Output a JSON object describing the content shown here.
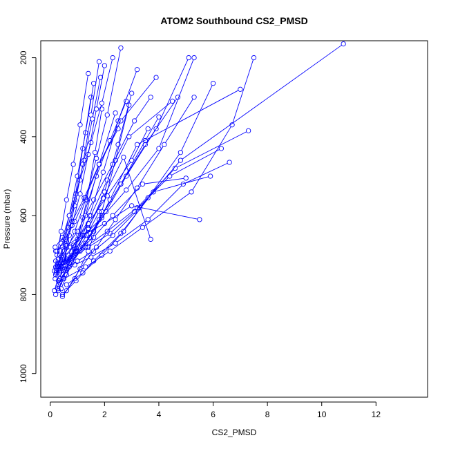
{
  "chart_data": {
    "type": "scatter",
    "title": "ATOM2 Southbound CS2_PMSD",
    "xlabel": "CS2_PMSD",
    "ylabel": "Pressure (mbar)",
    "xlim": [
      -0.35,
      13.9
    ],
    "ylim": [
      1060,
      157
    ],
    "y_axis_reversed": true,
    "x_ticks": [
      0,
      2,
      4,
      6,
      8,
      10,
      12
    ],
    "y_ticks": [
      200,
      400,
      600,
      800,
      1000
    ],
    "grid": false,
    "legend": "none",
    "marker": "open-circle",
    "connect_points": true,
    "colors": {
      "series": "#0000ff",
      "axis": "#000000",
      "background": "#ffffff"
    },
    "series": [
      {
        "x": [
          0.2,
          0.35,
          0.5,
          0.7,
          0.9,
          1.2,
          1.5
        ],
        "y": [
          800,
          760,
          720,
          650,
          560,
          430,
          300
        ]
      },
      {
        "x": [
          0.3,
          0.6,
          0.9,
          1.3,
          1.8,
          2.4
        ],
        "y": [
          790,
          735,
          690,
          600,
          470,
          340
        ]
      },
      {
        "x": [
          0.15,
          0.25,
          0.4,
          0.6,
          0.85,
          1.1,
          1.4
        ],
        "y": [
          740,
          700,
          640,
          560,
          470,
          370,
          240
        ]
      },
      {
        "x": [
          0.2,
          0.5,
          1.0,
          1.6,
          2.3,
          3.1,
          3.7
        ],
        "y": [
          730,
          690,
          640,
          560,
          470,
          360,
          300
        ]
      },
      {
        "x": [
          0.4,
          0.8,
          1.3,
          1.9,
          2.6,
          3.5,
          4.7
        ],
        "y": [
          785,
          720,
          670,
          600,
          520,
          420,
          300
        ]
      },
      {
        "x": [
          0.25,
          0.45,
          0.7,
          1.0,
          1.3,
          1.6
        ],
        "y": [
          735,
          680,
          600,
          500,
          390,
          265
        ]
      },
      {
        "x": [
          0.3,
          0.55,
          0.9,
          1.2,
          1.7,
          2.2,
          2.8
        ],
        "y": [
          775,
          740,
          685,
          605,
          500,
          410,
          310
        ]
      },
      {
        "x": [
          0.18,
          0.4,
          0.65,
          0.95,
          1.25,
          1.55,
          1.85
        ],
        "y": [
          760,
          705,
          630,
          545,
          460,
          355,
          250
        ]
      },
      {
        "x": [
          0.6,
          1.1,
          1.7,
          2.4,
          3.2,
          4.2,
          5.3
        ],
        "y": [
          790,
          735,
          680,
          610,
          530,
          420,
          300
        ]
      },
      {
        "x": [
          0.22,
          0.5,
          0.85,
          1.4,
          2.1,
          3.0,
          3.6
        ],
        "y": [
          745,
          710,
          675,
          620,
          550,
          460,
          380
        ]
      },
      {
        "x": [
          0.35,
          0.7,
          1.05,
          1.35,
          1.65,
          1.9
        ],
        "y": [
          770,
          720,
          650,
          560,
          440,
          330
        ]
      },
      {
        "x": [
          0.28,
          0.6,
          1.0,
          1.6,
          2.3,
          3.4,
          5.0
        ],
        "y": [
          728,
          710,
          690,
          655,
          600,
          520,
          505
        ]
      },
      {
        "x": [
          0.4,
          0.9,
          1.5,
          2.4,
          3.6,
          4.9,
          6.6
        ],
        "y": [
          740,
          725,
          705,
          670,
          610,
          520,
          465
        ]
      },
      {
        "x": [
          0.3,
          0.75,
          1.3,
          2.1,
          3.2,
          4.6,
          7.3
        ],
        "y": [
          720,
          705,
          680,
          640,
          580,
          480,
          385
        ]
      },
      {
        "x": [
          0.2,
          0.6,
          1.2,
          2.0,
          3.0,
          5.5
        ],
        "y": [
          690,
          675,
          650,
          620,
          575,
          610
        ]
      },
      {
        "x": [
          0.5,
          1.3,
          2.2,
          3.4,
          5.2,
          6.7,
          7.5
        ],
        "y": [
          760,
          730,
          690,
          630,
          540,
          370,
          200
        ]
      },
      {
        "x": [
          0.25,
          0.55,
          0.9,
          1.3,
          1.8,
          2.6,
          3.9
        ],
        "y": [
          690,
          660,
          615,
          555,
          470,
          360,
          250
        ]
      },
      {
        "x": [
          0.35,
          0.8,
          1.4,
          2.0,
          2.5,
          3.0
        ],
        "y": [
          735,
          700,
          635,
          540,
          420,
          290
        ]
      },
      {
        "x": [
          0.15,
          0.35,
          0.6,
          0.9,
          1.2,
          1.5,
          1.8
        ],
        "y": [
          790,
          745,
          665,
          575,
          470,
          345,
          210
        ]
      },
      {
        "x": [
          0.45,
          0.95,
          1.6,
          2.6,
          3.8,
          5.9
        ],
        "y": [
          800,
          765,
          715,
          645,
          540,
          500
        ]
      },
      {
        "x": [
          0.3,
          0.65,
          1.0,
          1.5,
          2.1,
          2.9,
          4.5
        ],
        "y": [
          730,
          700,
          660,
          600,
          510,
          400,
          310
        ]
      },
      {
        "x": [
          0.2,
          0.4,
          0.7,
          1.1,
          1.5,
          1.9,
          2.3
        ],
        "y": [
          715,
          670,
          600,
          510,
          415,
          315,
          200
        ]
      },
      {
        "x": [
          0.6,
          1.2,
          1.9,
          2.7,
          3.6,
          4.8,
          6.0
        ],
        "y": [
          775,
          745,
          700,
          640,
          555,
          440,
          265
        ]
      },
      {
        "x": [
          0.35,
          0.7,
          1.1,
          1.6,
          2.2,
          3.2,
          7.0
        ],
        "y": [
          740,
          720,
          690,
          640,
          560,
          420,
          280
        ]
      },
      {
        "x": [
          0.25,
          0.5,
          0.8,
          1.1,
          1.4,
          1.7,
          2.0
        ],
        "y": [
          730,
          690,
          625,
          545,
          445,
          330,
          220
        ]
      },
      {
        "x": [
          0.4,
          0.85,
          1.4,
          2.2,
          3.1,
          4.4,
          6.3
        ],
        "y": [
          720,
          705,
          680,
          645,
          590,
          500,
          430
        ]
      },
      {
        "x": [
          0.18,
          0.45,
          0.8,
          1.25,
          1.8,
          2.5
        ],
        "y": [
          680,
          655,
          615,
          555,
          470,
          380
        ]
      },
      {
        "x": [
          0.3,
          0.7,
          1.2,
          1.8,
          2.6,
          3.5,
          4.0
        ],
        "y": [
          765,
          730,
          680,
          610,
          520,
          410,
          350
        ]
      },
      {
        "x": [
          0.5,
          1.0,
          1.6,
          2.3,
          3.3,
          4.8,
          10.8
        ],
        "y": [
          735,
          715,
          690,
          650,
          580,
          460,
          165
        ]
      },
      {
        "x": [
          0.2,
          0.5,
          0.9,
          1.3,
          1.7,
          2.1,
          2.6
        ],
        "y": [
          750,
          705,
          640,
          560,
          455,
          345,
          175
        ]
      },
      {
        "x": [
          0.35,
          0.75,
          1.25,
          1.9,
          2.8,
          4.0,
          5.3
        ],
        "y": [
          700,
          680,
          650,
          605,
          535,
          430,
          200
        ]
      },
      {
        "x": [
          0.22,
          0.55,
          0.95,
          1.4,
          1.95,
          2.7,
          3.7
        ],
        "y": [
          740,
          718,
          683,
          632,
          556,
          452,
          660
        ]
      },
      {
        "x": [
          0.4,
          0.9,
          1.45,
          2.05,
          2.8,
          3.9,
          5.1
        ],
        "y": [
          730,
          700,
          655,
          590,
          500,
          380,
          200
        ]
      },
      {
        "x": [
          0.28,
          0.6,
          1.0,
          1.45,
          1.95,
          2.5,
          3.2
        ],
        "y": [
          785,
          750,
          690,
          600,
          490,
          360,
          230
        ]
      },
      {
        "x": [
          0.45,
          0.9,
          1.4,
          1.9,
          2.4,
          2.9
        ],
        "y": [
          805,
          760,
          690,
          590,
          460,
          320
        ]
      },
      {
        "x": [
          0.3,
          0.6,
          0.95,
          1.35,
          1.8
        ],
        "y": [
          730,
          715,
          690,
          650,
          590
        ]
      }
    ]
  }
}
